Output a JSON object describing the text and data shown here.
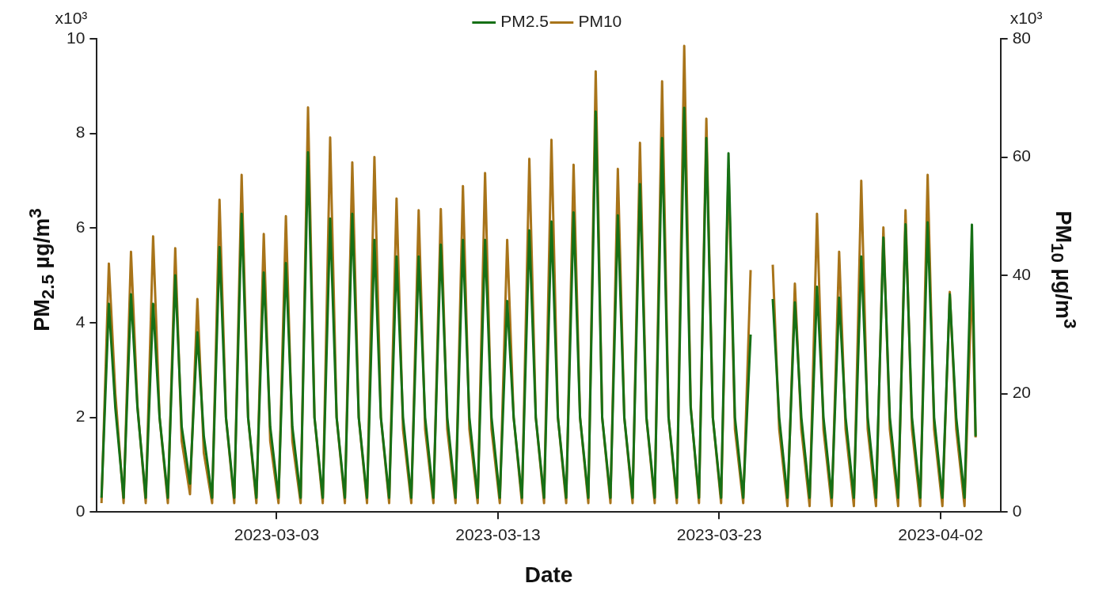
{
  "chart_data": {
    "type": "line",
    "xlabel": "Date",
    "ylabel": "PM$_{2.5}$ µg/m$^{3}$",
    "y2label": "PM$_{10}$ µg/m$^{3}$",
    "x": [
      "2023-02-23T02:00",
      "2023-02-23T10:00",
      "2023-02-23T17:00",
      "2023-02-24T02:00",
      "2023-02-24T10:00",
      "2023-02-24T17:00",
      "2023-02-25T02:00",
      "2023-02-25T10:00",
      "2023-02-25T17:00",
      "2023-02-26T02:00",
      "2023-02-26T10:00",
      "2023-02-26T17:00",
      "2023-02-27T02:00",
      "2023-02-27T10:00",
      "2023-02-27T17:00",
      "2023-02-28T02:00",
      "2023-02-28T10:00",
      "2023-02-28T17:00",
      "2023-03-01T02:00",
      "2023-03-01T10:00",
      "2023-03-01T17:00",
      "2023-03-02T02:00",
      "2023-03-02T10:00",
      "2023-03-02T17:00",
      "2023-03-03T02:00",
      "2023-03-03T10:00",
      "2023-03-03T17:00",
      "2023-03-04T02:00",
      "2023-03-04T10:00",
      "2023-03-04T17:00",
      "2023-03-05T02:00",
      "2023-03-05T10:00",
      "2023-03-05T17:00",
      "2023-03-06T02:00",
      "2023-03-06T10:00",
      "2023-03-06T17:00",
      "2023-03-07T02:00",
      "2023-03-07T10:00",
      "2023-03-07T17:00",
      "2023-03-08T02:00",
      "2023-03-08T10:00",
      "2023-03-08T17:00",
      "2023-03-09T02:00",
      "2023-03-09T10:00",
      "2023-03-09T17:00",
      "2023-03-10T02:00",
      "2023-03-10T10:00",
      "2023-03-10T17:00",
      "2023-03-11T02:00",
      "2023-03-11T10:00",
      "2023-03-11T17:00",
      "2023-03-12T02:00",
      "2023-03-12T10:00",
      "2023-03-12T17:00",
      "2023-03-13T02:00",
      "2023-03-13T10:00",
      "2023-03-13T17:00",
      "2023-03-14T02:00",
      "2023-03-14T10:00",
      "2023-03-14T17:00",
      "2023-03-15T02:00",
      "2023-03-15T10:00",
      "2023-03-15T17:00",
      "2023-03-16T02:00",
      "2023-03-16T10:00",
      "2023-03-16T17:00",
      "2023-03-17T02:00",
      "2023-03-17T10:00",
      "2023-03-17T17:00",
      "2023-03-18T02:00",
      "2023-03-18T10:00",
      "2023-03-18T17:00",
      "2023-03-19T02:00",
      "2023-03-19T10:00",
      "2023-03-19T17:00",
      "2023-03-20T02:00",
      "2023-03-20T10:00",
      "2023-03-20T17:00",
      "2023-03-21T02:00",
      "2023-03-21T10:00",
      "2023-03-21T17:00",
      "2023-03-22T02:00",
      "2023-03-22T10:00",
      "2023-03-22T17:00",
      "2023-03-23T02:00",
      "2023-03-23T10:00",
      "2023-03-23T17:00",
      "2023-03-24T02:00",
      "2023-03-24T10:00",
      "2023-03-24T17:00",
      "2023-03-25T02:00",
      "2023-03-25T10:00",
      "2023-03-25T17:00",
      "2023-03-26T02:00",
      "2023-03-26T10:00",
      "2023-03-26T17:00",
      "2023-03-27T02:00",
      "2023-03-27T10:00",
      "2023-03-27T17:00",
      "2023-03-28T02:00",
      "2023-03-28T10:00",
      "2023-03-28T17:00",
      "2023-03-29T02:00",
      "2023-03-29T10:00",
      "2023-03-29T17:00",
      "2023-03-30T02:00",
      "2023-03-30T10:00",
      "2023-03-30T17:00",
      "2023-03-31T02:00",
      "2023-03-31T10:00",
      "2023-03-31T17:00",
      "2023-04-01T02:00",
      "2023-04-01T10:00",
      "2023-04-01T17:00",
      "2023-04-02T02:00",
      "2023-04-02T10:00",
      "2023-04-02T17:00",
      "2023-04-03T02:00",
      "2023-04-03T10:00",
      "2023-04-03T14:00"
    ],
    "series": [
      {
        "name": "PM10",
        "axis": "y2",
        "color": "#a8741a",
        "values": [
          1.5,
          42,
          20,
          1.5,
          44,
          18,
          1.5,
          46.6,
          16,
          1.5,
          44.6,
          12,
          3,
          36,
          10,
          1.5,
          52.8,
          16,
          1.5,
          57,
          16,
          1.5,
          47,
          12,
          1.5,
          50,
          12,
          1.5,
          68.4,
          16,
          1.5,
          63.3,
          16,
          1.5,
          59.1,
          16,
          1.5,
          60,
          16,
          1.5,
          53,
          14,
          1.5,
          51,
          14,
          1.5,
          51.2,
          14,
          1.5,
          55.1,
          14,
          1.5,
          57.3,
          14,
          1.5,
          46,
          16,
          1.5,
          59.7,
          16,
          1.5,
          62.9,
          16,
          1.5,
          58.7,
          16,
          1.5,
          74.5,
          16,
          1.5,
          58,
          16,
          1.5,
          62.4,
          16,
          1.5,
          72.8,
          16,
          1.5,
          78.8,
          18,
          1.5,
          66.5,
          16,
          1.5,
          58,
          14,
          1.5,
          40.9,
          null,
          null,
          41.8,
          14,
          1,
          38.6,
          14,
          1,
          50.4,
          14,
          1,
          44,
          14,
          1,
          56,
          14,
          1,
          48.1,
          14,
          1,
          51,
          14,
          1,
          57,
          14,
          1,
          37.2,
          14,
          1,
          39.6,
          12.6
        ]
      },
      {
        "name": "PM2.5",
        "axis": "y",
        "color": "#167016",
        "values": [
          0.3,
          4.4,
          2.2,
          0.3,
          4.6,
          2.2,
          0.3,
          4.4,
          2.0,
          0.3,
          5.0,
          1.8,
          0.6,
          3.8,
          1.6,
          0.3,
          5.6,
          2.0,
          0.3,
          6.3,
          2.0,
          0.3,
          5.06,
          1.8,
          0.3,
          5.26,
          1.8,
          0.3,
          7.6,
          2.0,
          0.3,
          6.2,
          2.0,
          0.3,
          6.3,
          2.0,
          0.3,
          5.75,
          2.0,
          0.3,
          5.4,
          2.0,
          0.3,
          5.4,
          2.0,
          0.3,
          5.65,
          2.0,
          0.3,
          5.75,
          2.0,
          0.3,
          5.75,
          2.0,
          0.3,
          4.46,
          2.0,
          0.3,
          5.95,
          2.0,
          0.3,
          6.14,
          2.0,
          0.3,
          6.33,
          2.0,
          0.3,
          8.46,
          2.0,
          0.3,
          6.27,
          2.0,
          0.3,
          6.93,
          2.0,
          0.3,
          7.9,
          2.0,
          0.3,
          8.54,
          2.2,
          0.3,
          7.9,
          2.0,
          0.3,
          7.58,
          2.0,
          0.3,
          3.75,
          null,
          null,
          4.5,
          2.0,
          0.3,
          4.43,
          2.0,
          0.3,
          4.76,
          2.0,
          0.3,
          4.53,
          2.0,
          0.3,
          5.4,
          2.0,
          0.3,
          5.8,
          2.0,
          0.3,
          6.08,
          2.0,
          0.3,
          6.12,
          2.0,
          0.3,
          4.6,
          2.0,
          0.3,
          6.07,
          1.6
        ]
      }
    ],
    "xlim": [
      "2023-02-22T21:00",
      "2023-04-04T17:00"
    ],
    "xticks": [
      "2023-03-03",
      "2023-03-13",
      "2023-03-23",
      "2023-04-02"
    ],
    "ylim": [
      0,
      10
    ],
    "yticks": [
      0,
      2,
      4,
      6,
      8,
      10
    ],
    "y2lim": [
      0,
      80
    ],
    "y2ticks": [
      0,
      20,
      40,
      60,
      80
    ],
    "annotations": [
      "x10³",
      "x10³"
    ],
    "legend": "top",
    "grid": false,
    "marker": "none",
    "line_style": "solid"
  }
}
